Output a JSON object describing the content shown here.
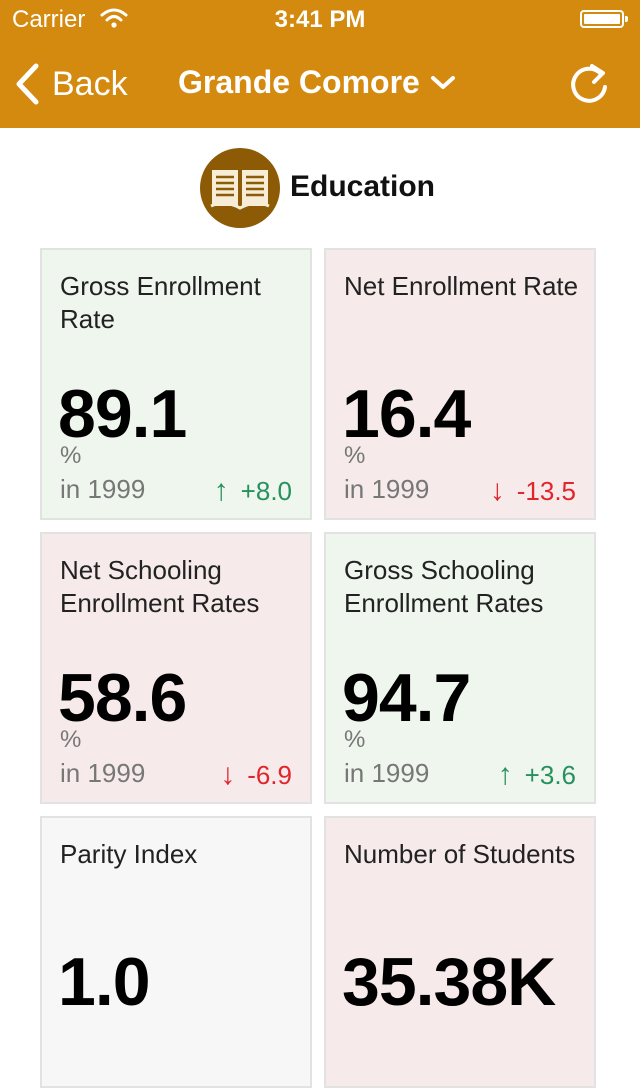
{
  "status_bar": {
    "carrier": "Carrier",
    "time": "3:41 PM",
    "wifi_icon": "wifi-icon",
    "battery_icon": "battery-icon"
  },
  "nav": {
    "back_label": "Back",
    "title": "Grande Comore",
    "refresh_icon": "refresh-icon",
    "background_color": "#d4890f"
  },
  "section": {
    "title": "Education",
    "icon": "book-icon",
    "icon_color": "#8d5a05"
  },
  "indicators": [
    {
      "title": "Gross Enrollment Rate",
      "value": "89.1",
      "unit": "%",
      "year": "in 1999",
      "change": "+8.0",
      "direction": "up",
      "tone": "green"
    },
    {
      "title": "Net Enrollment Rate",
      "value": "16.4",
      "unit": "%",
      "year": "in 1999",
      "change": "-13.5",
      "direction": "down",
      "tone": "red"
    },
    {
      "title": "Net Schooling Enrollment Rates",
      "value": "58.6",
      "unit": "%",
      "year": "in 1999",
      "change": "-6.9",
      "direction": "down",
      "tone": "red"
    },
    {
      "title": "Gross Schooling Enrollment Rates",
      "value": "94.7",
      "unit": "%",
      "year": "in 1999",
      "change": "+3.6",
      "direction": "up",
      "tone": "green"
    },
    {
      "title": "Parity Index",
      "value": "1.0",
      "unit": "",
      "year": "",
      "change": "",
      "direction": "",
      "tone": "gray"
    },
    {
      "title": "Number of Students",
      "value": "35.38K",
      "unit": "",
      "year": "",
      "change": "",
      "direction": "",
      "tone": "red"
    }
  ],
  "arrows": {
    "up": "↑",
    "down": "↓"
  },
  "colors": {
    "up": "#27915e",
    "down": "#e2252b",
    "green_card": "#eff6ee",
    "red_card": "#f6eaea"
  }
}
